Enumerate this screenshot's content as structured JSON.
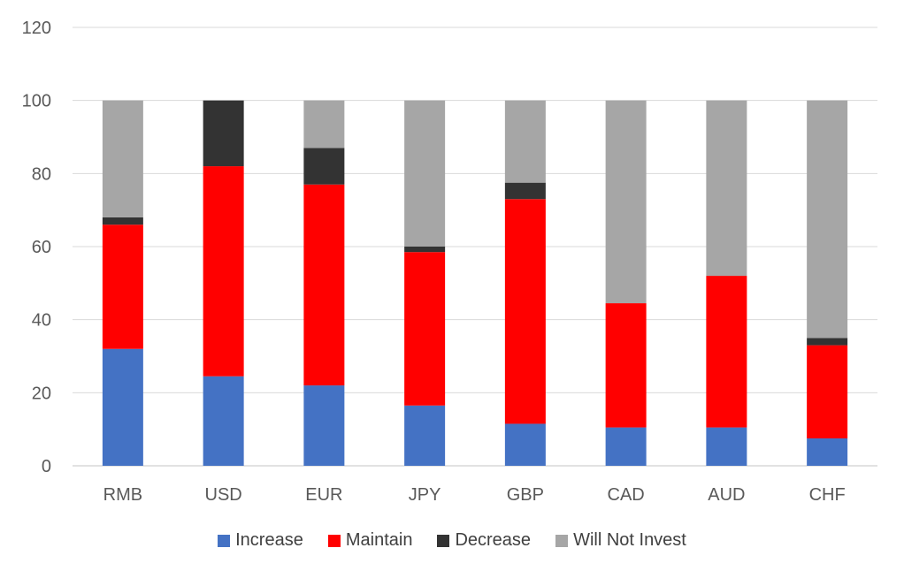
{
  "chart_data": {
    "type": "bar",
    "stacked": true,
    "categories": [
      "RMB",
      "USD",
      "EUR",
      "JPY",
      "GBP",
      "CAD",
      "AUD",
      "CHF"
    ],
    "series": [
      {
        "name": "Increase",
        "color": "#4472C4",
        "values": [
          32,
          24.5,
          22,
          16.5,
          11.5,
          10.5,
          10.5,
          7.5
        ]
      },
      {
        "name": "Maintain",
        "color": "#FF0000",
        "values": [
          34,
          57.5,
          55,
          42,
          61.5,
          34,
          41.5,
          25.5
        ]
      },
      {
        "name": "Decrease",
        "color": "#333333",
        "values": [
          2,
          18,
          10,
          1.5,
          4.5,
          0,
          0,
          2
        ]
      },
      {
        "name": "Will Not Invest",
        "color": "#A6A6A6",
        "values": [
          32,
          0,
          13,
          40,
          22.5,
          55.5,
          48,
          65
        ]
      }
    ],
    "ylim": [
      0,
      120
    ],
    "yticks": [
      0,
      20,
      40,
      60,
      80,
      100,
      120
    ],
    "grid": true,
    "legend": "bottom",
    "gridline_color": "#D9D9D9"
  }
}
